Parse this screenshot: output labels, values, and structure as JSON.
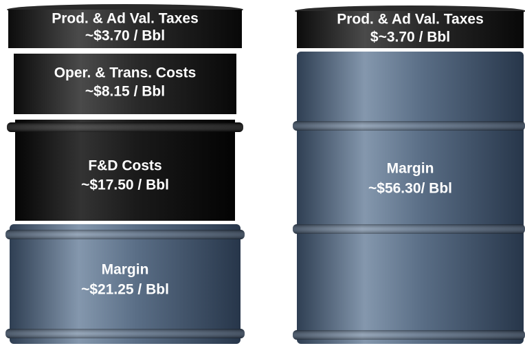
{
  "barrels": [
    {
      "segments": [
        {
          "label": "Prod. & Ad Val. Taxes",
          "value": "~$3.70 / Bbl"
        },
        {
          "label": "Oper. & Trans. Costs",
          "value": "~$8.15 / Bbl"
        },
        {
          "label": "F&D Costs",
          "value": "~$17.50 / Bbl"
        },
        {
          "label": "Margin",
          "value": "~$21.25 / Bbl"
        }
      ]
    },
    {
      "segments": [
        {
          "label": "Prod. & Ad Val. Taxes",
          "value": "$~3.70 / Bbl"
        },
        {
          "label": "Margin",
          "value": "~$56.30/ Bbl"
        }
      ]
    }
  ]
}
